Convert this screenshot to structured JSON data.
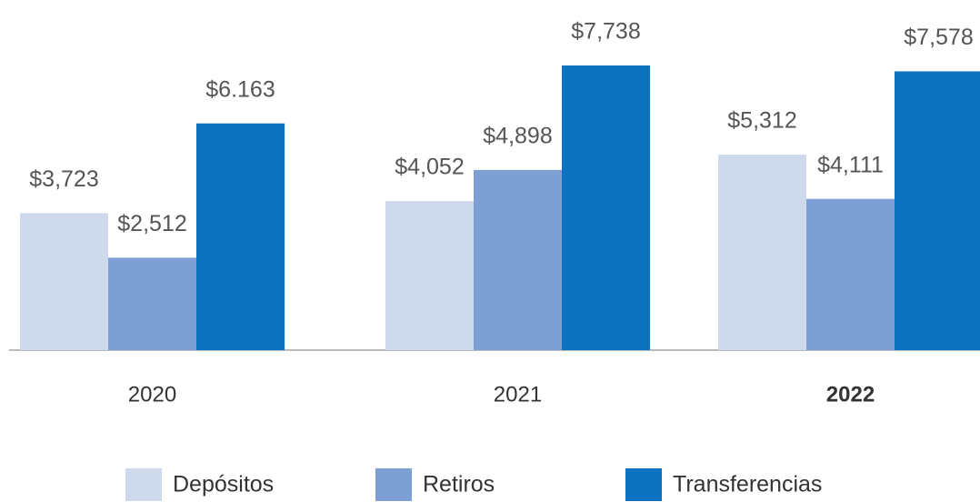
{
  "chart_data": {
    "type": "bar",
    "categories": [
      "2020",
      "2021",
      "2022"
    ],
    "series": [
      {
        "name": "Depósitos",
        "color": "#cfd9ec",
        "values": [
          3723,
          4052,
          5312
        ],
        "value_labels": [
          "$3,723",
          "$4,052",
          "$5,312"
        ]
      },
      {
        "name": "Retiros",
        "color": "#7d9fd3",
        "values": [
          2512,
          4898,
          4111
        ],
        "value_labels": [
          "$2,512",
          "$4,898",
          "$4,111"
        ]
      },
      {
        "name": "Transferencias",
        "color": "#0d72bf",
        "values": [
          6163,
          7738,
          7578
        ],
        "value_labels": [
          "$6.163",
          "$7,738",
          "$7,578"
        ]
      }
    ],
    "ylim": [
      0,
      8000
    ]
  }
}
